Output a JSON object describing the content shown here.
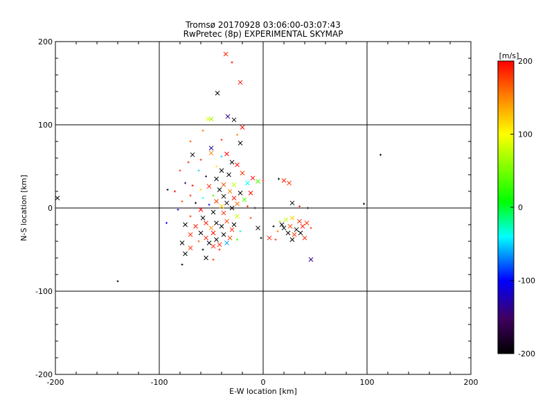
{
  "chart_data": {
    "type": "scatter",
    "title": "Tromsø 20170928 03:06:00-03:07:43",
    "subtitle": "RwPretec (8p) EXPERIMENTAL SKYMAP",
    "xlabel": "E-W location [km]",
    "ylabel": "N-S location [km]",
    "xlim": [
      -200,
      200
    ],
    "ylim": [
      -200,
      200
    ],
    "xticks": [
      "-200",
      "-100",
      "0",
      "100",
      "200"
    ],
    "yticks": [
      "-200",
      "-100",
      "0",
      "100",
      "200"
    ],
    "grid": true,
    "colorbar": {
      "label": "[m/s]",
      "range": [
        -200,
        200
      ],
      "ticks": [
        "-200",
        "-100",
        "0",
        "100",
        "200"
      ],
      "colors": [
        "#000000",
        "#400060",
        "#0000ff",
        "#00ffff",
        "#00ff00",
        "#ffff00",
        "#ff8000",
        "#ff0000"
      ]
    },
    "points": [
      {
        "x": -36,
        "y": 185,
        "v": 190,
        "m": "x"
      },
      {
        "x": -30,
        "y": 175,
        "v": 200,
        "m": "+"
      },
      {
        "x": -22,
        "y": 151,
        "v": 195,
        "m": "x"
      },
      {
        "x": -44,
        "y": 138,
        "v": -200,
        "m": "x"
      },
      {
        "x": -34,
        "y": 110,
        "v": -140,
        "m": "x"
      },
      {
        "x": -28,
        "y": 106,
        "v": -200,
        "m": "x"
      },
      {
        "x": -50,
        "y": 107,
        "v": 60,
        "m": "x"
      },
      {
        "x": -53,
        "y": 107,
        "v": 90,
        "m": "x"
      },
      {
        "x": -20,
        "y": 97,
        "v": 195,
        "m": "x"
      },
      {
        "x": -58,
        "y": 93,
        "v": 160,
        "m": "+"
      },
      {
        "x": -25,
        "y": 88,
        "v": 150,
        "m": "+"
      },
      {
        "x": -40,
        "y": 82,
        "v": 180,
        "m": "+"
      },
      {
        "x": -22,
        "y": 78,
        "v": -200,
        "m": "x"
      },
      {
        "x": -70,
        "y": 80,
        "v": 170,
        "m": "+"
      },
      {
        "x": 113,
        "y": 64,
        "v": -200,
        "m": "+"
      },
      {
        "x": -68,
        "y": 64,
        "v": -200,
        "m": "x"
      },
      {
        "x": -50,
        "y": 72,
        "v": -130,
        "m": "x"
      },
      {
        "x": -50,
        "y": 66,
        "v": 150,
        "m": "x"
      },
      {
        "x": -35,
        "y": 65,
        "v": 200,
        "m": "x"
      },
      {
        "x": -40,
        "y": 62,
        "v": -50,
        "m": "+"
      },
      {
        "x": -60,
        "y": 58,
        "v": 180,
        "m": "+"
      },
      {
        "x": -72,
        "y": 55,
        "v": 190,
        "m": "+"
      },
      {
        "x": -30,
        "y": 55,
        "v": -200,
        "m": "x"
      },
      {
        "x": -25,
        "y": 52,
        "v": 195,
        "m": "x"
      },
      {
        "x": -45,
        "y": 50,
        "v": 110,
        "m": "+"
      },
      {
        "x": -62,
        "y": 45,
        "v": -50,
        "m": "+"
      },
      {
        "x": -80,
        "y": 45,
        "v": 180,
        "m": "+"
      },
      {
        "x": -40,
        "y": 45,
        "v": -200,
        "m": "x"
      },
      {
        "x": -20,
        "y": 42,
        "v": 180,
        "m": "x"
      },
      {
        "x": -33,
        "y": 40,
        "v": -200,
        "m": "x"
      },
      {
        "x": -55,
        "y": 38,
        "v": -160,
        "m": "+"
      },
      {
        "x": -10,
        "y": 36,
        "v": 200,
        "m": "x"
      },
      {
        "x": -5,
        "y": 32,
        "v": 30,
        "m": "x"
      },
      {
        "x": 0,
        "y": 33,
        "v": 190,
        "m": "+"
      },
      {
        "x": 20,
        "y": 33,
        "v": 190,
        "m": "x"
      },
      {
        "x": 25,
        "y": 30,
        "v": 180,
        "m": "x"
      },
      {
        "x": 15,
        "y": 35,
        "v": -200,
        "m": "+"
      },
      {
        "x": -45,
        "y": 35,
        "v": -200,
        "m": "x"
      },
      {
        "x": -15,
        "y": 30,
        "v": -40,
        "m": "x"
      },
      {
        "x": -38,
        "y": 28,
        "v": 170,
        "m": "x"
      },
      {
        "x": -28,
        "y": 28,
        "v": 80,
        "m": "x"
      },
      {
        "x": -52,
        "y": 26,
        "v": 190,
        "m": "x"
      },
      {
        "x": -68,
        "y": 27,
        "v": 200,
        "m": "+"
      },
      {
        "x": -75,
        "y": 30,
        "v": -150,
        "m": "+"
      },
      {
        "x": -92,
        "y": 22,
        "v": -200,
        "m": "+"
      },
      {
        "x": -85,
        "y": 20,
        "v": 200,
        "m": "+"
      },
      {
        "x": -60,
        "y": 22,
        "v": 120,
        "m": "+"
      },
      {
        "x": -42,
        "y": 22,
        "v": -200,
        "m": "x"
      },
      {
        "x": -32,
        "y": 20,
        "v": 150,
        "m": "x"
      },
      {
        "x": -22,
        "y": 18,
        "v": -200,
        "m": "x"
      },
      {
        "x": -12,
        "y": 18,
        "v": 200,
        "m": "x"
      },
      {
        "x": -48,
        "y": 15,
        "v": 30,
        "m": "+"
      },
      {
        "x": -38,
        "y": 14,
        "v": -200,
        "m": "x"
      },
      {
        "x": -28,
        "y": 12,
        "v": 190,
        "m": "x"
      },
      {
        "x": -70,
        "y": 15,
        "v": 180,
        "m": "+"
      },
      {
        "x": -58,
        "y": 12,
        "v": -40,
        "m": "+"
      },
      {
        "x": -198,
        "y": 12,
        "v": -200,
        "m": "x"
      },
      {
        "x": -18,
        "y": 10,
        "v": 40,
        "m": "x"
      },
      {
        "x": -45,
        "y": 8,
        "v": 180,
        "m": "x"
      },
      {
        "x": -35,
        "y": 6,
        "v": -200,
        "m": "x"
      },
      {
        "x": -65,
        "y": 6,
        "v": -200,
        "m": "+"
      },
      {
        "x": -78,
        "y": 8,
        "v": 170,
        "m": "+"
      },
      {
        "x": -25,
        "y": 5,
        "v": 160,
        "m": "x"
      },
      {
        "x": -52,
        "y": 4,
        "v": -100,
        "m": "+"
      },
      {
        "x": -40,
        "y": 2,
        "v": 120,
        "m": "x"
      },
      {
        "x": -30,
        "y": 0,
        "v": -200,
        "m": "x"
      },
      {
        "x": -15,
        "y": 2,
        "v": 190,
        "m": "+"
      },
      {
        "x": -8,
        "y": 0,
        "v": -200,
        "m": "+"
      },
      {
        "x": -60,
        "y": -2,
        "v": 200,
        "m": "x"
      },
      {
        "x": -82,
        "y": -2,
        "v": -120,
        "m": "+"
      },
      {
        "x": -48,
        "y": -5,
        "v": -200,
        "m": "x"
      },
      {
        "x": -38,
        "y": -6,
        "v": 190,
        "m": "x"
      },
      {
        "x": 97,
        "y": 5,
        "v": -200,
        "m": "+"
      },
      {
        "x": 28,
        "y": 6,
        "v": -200,
        "m": "x"
      },
      {
        "x": 35,
        "y": 2,
        "v": 190,
        "m": "+"
      },
      {
        "x": 43,
        "y": 0,
        "v": -200,
        "m": "+"
      },
      {
        "x": -93,
        "y": -18,
        "v": -100,
        "m": "+"
      },
      {
        "x": -70,
        "y": -10,
        "v": 180,
        "m": "+"
      },
      {
        "x": -58,
        "y": -12,
        "v": -200,
        "m": "x"
      },
      {
        "x": -25,
        "y": -10,
        "v": 80,
        "m": "x"
      },
      {
        "x": -12,
        "y": -12,
        "v": 170,
        "m": "+"
      },
      {
        "x": -55,
        "y": -18,
        "v": 190,
        "m": "x"
      },
      {
        "x": -45,
        "y": -18,
        "v": -200,
        "m": "x"
      },
      {
        "x": -35,
        "y": -16,
        "v": 180,
        "m": "x"
      },
      {
        "x": -28,
        "y": -20,
        "v": -200,
        "m": "x"
      },
      {
        "x": -75,
        "y": -20,
        "v": -200,
        "m": "x"
      },
      {
        "x": -65,
        "y": -22,
        "v": 190,
        "m": "x"
      },
      {
        "x": -50,
        "y": -24,
        "v": 150,
        "m": "x"
      },
      {
        "x": -40,
        "y": -22,
        "v": -200,
        "m": "x"
      },
      {
        "x": -30,
        "y": -26,
        "v": 190,
        "m": "x"
      },
      {
        "x": -5,
        "y": -24,
        "v": -200,
        "m": "x"
      },
      {
        "x": -22,
        "y": -28,
        "v": -30,
        "m": "+"
      },
      {
        "x": -60,
        "y": -30,
        "v": -200,
        "m": "x"
      },
      {
        "x": -48,
        "y": -30,
        "v": 200,
        "m": "x"
      },
      {
        "x": -38,
        "y": -32,
        "v": -200,
        "m": "x"
      },
      {
        "x": -70,
        "y": -32,
        "v": 180,
        "m": "x"
      },
      {
        "x": -55,
        "y": -36,
        "v": 190,
        "m": "x"
      },
      {
        "x": -45,
        "y": -38,
        "v": -200,
        "m": "x"
      },
      {
        "x": -32,
        "y": -36,
        "v": 180,
        "m": "x"
      },
      {
        "x": -25,
        "y": -38,
        "v": 30,
        "m": "+"
      },
      {
        "x": -62,
        "y": -40,
        "v": 170,
        "m": "+"
      },
      {
        "x": -52,
        "y": -42,
        "v": -200,
        "m": "x"
      },
      {
        "x": -42,
        "y": -44,
        "v": 190,
        "m": "x"
      },
      {
        "x": -78,
        "y": -42,
        "v": -200,
        "m": "x"
      },
      {
        "x": -35,
        "y": -42,
        "v": -60,
        "m": "x"
      },
      {
        "x": -48,
        "y": -46,
        "v": 190,
        "m": "x"
      },
      {
        "x": -70,
        "y": -48,
        "v": 180,
        "m": "x"
      },
      {
        "x": -58,
        "y": -50,
        "v": -200,
        "m": "+"
      },
      {
        "x": -75,
        "y": -55,
        "v": -200,
        "m": "x"
      },
      {
        "x": -55,
        "y": -60,
        "v": -200,
        "m": "x"
      },
      {
        "x": -48,
        "y": -62,
        "v": 180,
        "m": "+"
      },
      {
        "x": -78,
        "y": -68,
        "v": -200,
        "m": "+"
      },
      {
        "x": -42,
        "y": -50,
        "v": 190,
        "m": "+"
      },
      {
        "x": -2,
        "y": -36,
        "v": -200,
        "m": "+"
      },
      {
        "x": 6,
        "y": -36,
        "v": 190,
        "m": "x"
      },
      {
        "x": 12,
        "y": -38,
        "v": 180,
        "m": "+"
      },
      {
        "x": 18,
        "y": -20,
        "v": -200,
        "m": "x"
      },
      {
        "x": 22,
        "y": -14,
        "v": 80,
        "m": "x"
      },
      {
        "x": 28,
        "y": -12,
        "v": 120,
        "m": "x"
      },
      {
        "x": 35,
        "y": -16,
        "v": 190,
        "m": "x"
      },
      {
        "x": 42,
        "y": -18,
        "v": 180,
        "m": "x"
      },
      {
        "x": 20,
        "y": -24,
        "v": -200,
        "m": "x"
      },
      {
        "x": 26,
        "y": -22,
        "v": 170,
        "m": "x"
      },
      {
        "x": 32,
        "y": -26,
        "v": -200,
        "m": "x"
      },
      {
        "x": 38,
        "y": -22,
        "v": 190,
        "m": "x"
      },
      {
        "x": 46,
        "y": -24,
        "v": 180,
        "m": "+"
      },
      {
        "x": 14,
        "y": -28,
        "v": 150,
        "m": "+"
      },
      {
        "x": 24,
        "y": -30,
        "v": -200,
        "m": "x"
      },
      {
        "x": 30,
        "y": -32,
        "v": 180,
        "m": "x"
      },
      {
        "x": 36,
        "y": -30,
        "v": -200,
        "m": "x"
      },
      {
        "x": 28,
        "y": -38,
        "v": -200,
        "m": "x"
      },
      {
        "x": 40,
        "y": -36,
        "v": 190,
        "m": "x"
      },
      {
        "x": 16,
        "y": -16,
        "v": 60,
        "m": "+"
      },
      {
        "x": 10,
        "y": -22,
        "v": -200,
        "m": "+"
      },
      {
        "x": 46,
        "y": -62,
        "v": -140,
        "m": "x"
      },
      {
        "x": -140,
        "y": -88,
        "v": -200,
        "m": "+"
      }
    ]
  }
}
